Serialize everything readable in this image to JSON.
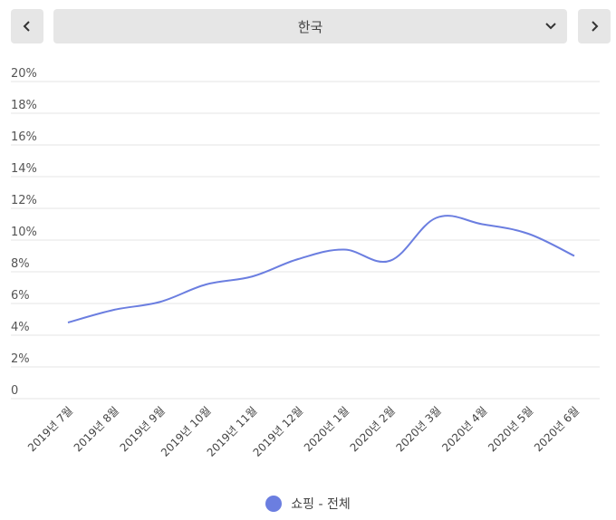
{
  "header": {
    "prev_icon": "chevron-left-icon",
    "next_icon": "chevron-right-icon",
    "dropdown_icon": "chevron-down-icon",
    "selected_region": "한국"
  },
  "chart_data": {
    "type": "line",
    "categories": [
      "2019년 7월",
      "2019년 8월",
      "2019년 9월",
      "2019년 10월",
      "2019년 11월",
      "2019년 12월",
      "2020년 1월",
      "2020년 2월",
      "2020년 3월",
      "2020년 4월",
      "2020년 5월",
      "2020년 6월"
    ],
    "y_ticks": [
      "0",
      "2%",
      "4%",
      "6%",
      "8%",
      "10%",
      "12%",
      "14%",
      "16%",
      "18%",
      "20%"
    ],
    "ylim": [
      0,
      20
    ],
    "grid": true,
    "legend_position": "bottom",
    "series": [
      {
        "name": "쇼핑 - 전체",
        "color": "#6b7ee0",
        "values": [
          4.8,
          5.6,
          6.1,
          7.2,
          7.7,
          8.8,
          9.4,
          8.7,
          11.4,
          11.0,
          10.4,
          9.0
        ]
      }
    ]
  }
}
